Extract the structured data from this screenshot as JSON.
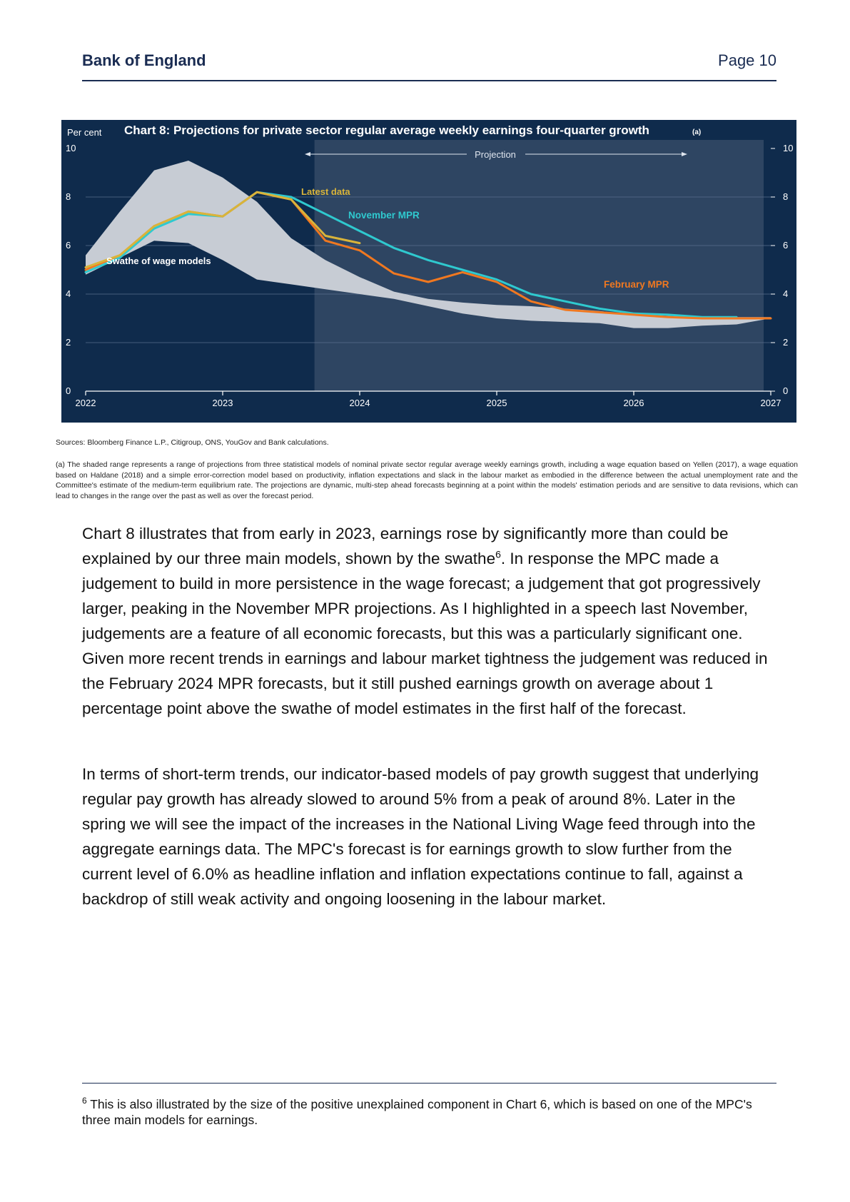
{
  "header": {
    "brand": "Bank of England",
    "page": "Page 10"
  },
  "chart_data": {
    "type": "line",
    "title": "Chart 8: Projections for private sector regular average weekly earnings four-quarter growth",
    "title_note": "(a)",
    "ylabel": "Per cent",
    "ylim": [
      0,
      10
    ],
    "yticks": [
      "0",
      "2",
      "4",
      "6",
      "8",
      "10"
    ],
    "xlim": [
      2022,
      2027
    ],
    "xticks": [
      "2022",
      "2023",
      "2024",
      "2025",
      "2026",
      "2027"
    ],
    "projection_label": "Projection",
    "projection_start": 2023.67,
    "swathe": {
      "name": "Swathe of wage models",
      "x": [
        2022.0,
        2022.25,
        2022.5,
        2022.75,
        2023.0,
        2023.25,
        2023.5,
        2023.75,
        2024.0,
        2024.25,
        2024.5,
        2024.75,
        2025.0,
        2025.25,
        2025.5,
        2025.75,
        2026.0,
        2026.25,
        2026.5,
        2026.75,
        2027.0
      ],
      "upper": [
        5.6,
        7.4,
        9.1,
        9.5,
        8.8,
        7.8,
        6.3,
        5.4,
        4.7,
        4.1,
        3.8,
        3.65,
        3.55,
        3.5,
        3.4,
        3.3,
        3.15,
        3.1,
        3.05,
        3.05,
        3.05
      ],
      "lower": [
        4.8,
        5.5,
        6.2,
        6.1,
        5.4,
        4.6,
        4.4,
        4.2,
        4.0,
        3.8,
        3.5,
        3.2,
        3.0,
        2.9,
        2.85,
        2.8,
        2.6,
        2.6,
        2.7,
        2.75,
        3.0
      ]
    },
    "series": [
      {
        "name": "Latest data",
        "color": "#d9b43a",
        "x": [
          2022.0,
          2022.25,
          2022.5,
          2022.75,
          2023.0,
          2023.25,
          2023.5,
          2023.75,
          2024.0
        ],
        "values": [
          5.1,
          5.6,
          6.8,
          7.4,
          7.2,
          8.2,
          7.9,
          6.4,
          6.1
        ]
      },
      {
        "name": "November MPR",
        "color": "#2fc9cf",
        "x": [
          2022.0,
          2022.25,
          2022.5,
          2022.75,
          2023.0,
          2023.25,
          2023.5,
          2023.75,
          2024.0,
          2024.25,
          2024.5,
          2024.75,
          2025.0,
          2025.25,
          2025.5,
          2025.75,
          2026.0,
          2026.25,
          2026.5,
          2026.75
        ],
        "values": [
          4.9,
          5.5,
          6.7,
          7.3,
          7.2,
          8.2,
          8.0,
          7.3,
          6.6,
          5.9,
          5.4,
          5.0,
          4.6,
          4.0,
          3.7,
          3.4,
          3.2,
          3.15,
          3.05,
          3.05
        ]
      },
      {
        "name": "February MPR",
        "color": "#f07820",
        "x": [
          2022.0,
          2022.25,
          2022.5,
          2022.75,
          2023.0,
          2023.25,
          2023.5,
          2023.75,
          2024.0,
          2024.25,
          2024.5,
          2024.75,
          2025.0,
          2025.25,
          2025.5,
          2025.75,
          2026.0,
          2026.25,
          2026.5,
          2026.75,
          2027.0
        ],
        "values": [
          5.0,
          5.6,
          6.8,
          7.4,
          7.2,
          8.2,
          7.9,
          6.2,
          5.8,
          4.85,
          4.5,
          4.9,
          4.5,
          3.7,
          3.35,
          3.25,
          3.15,
          3.05,
          3.0,
          3.0,
          3.0
        ]
      }
    ]
  },
  "sources": "Sources: Bloomberg Finance L.P., Citigroup, ONS, YouGov and Bank calculations.",
  "footnote_a": "(a) The shaded range represents a range of projections from three statistical models of nominal private sector regular average weekly earnings growth, including a wage equation based on Yellen (2017), a wage equation based on Haldane (2018) and a simple error-correction model based on productivity, inflation expectations and slack in the labour market as embodied in the difference between the actual unemployment rate and the Committee's estimate of the medium-term equilibrium rate. The projections are dynamic, multi-step ahead forecasts beginning at a point within the models' estimation periods and are sensitive to data revisions, which can lead to changes in the range over the past as well as over the forecast period.",
  "para1_a": "Chart 8 illustrates that from early in 2023, earnings rose by significantly more than could be explained by our three main models, shown by the swathe",
  "para1_sup": "6",
  "para1_b": ".  In response the MPC made a judgement to build in more persistence in the wage forecast; a judgement that got progressively larger, peaking in the November MPR projections. As I highlighted in a speech last November, judgements are a feature of all economic forecasts, but this was a particularly significant one. Given more recent trends in earnings and labour market tightness the judgement was reduced in the February 2024 MPR forecasts, but it still pushed earnings growth on average about 1 percentage point above the swathe of model estimates in the first half of the forecast.",
  "para2": "In terms of short-term trends, our indicator-based models of pay growth suggest that underlying regular pay growth has already slowed to around 5% from a peak of around 8%. Later in the spring we will see the impact of the increases in the National Living Wage feed through into the aggregate earnings data.  The MPC's forecast is for earnings growth to slow further from the current level of 6.0% as headline inflation and inflation expectations continue to fall, against a backdrop of still weak activity and ongoing loosening in the labour market.",
  "footnote6_num": "6",
  "footnote6_text": " This is also illustrated by the size of the positive unexplained component in Chart 6, which is based on one of the MPC's three main models for earnings.",
  "colors": {
    "chart_bg": "#0f2b4c",
    "projection_bg": "#2e4562",
    "swathe": "#c7ccd4",
    "brand": "#1a2c52"
  }
}
